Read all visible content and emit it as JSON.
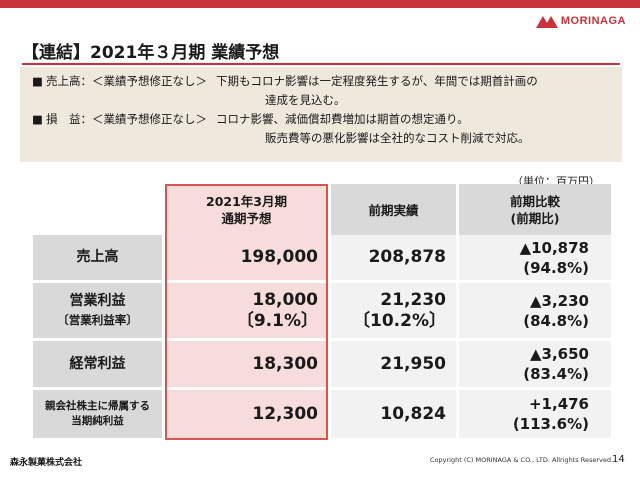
{
  "header": {
    "logo_text": "MORINAGA",
    "title": "【連結】2021年３月期 業績予想"
  },
  "summary": [
    {
      "bullet": "■",
      "label": "売上高：＜業績予想修正なし＞",
      "line1": "下期もコロナ影響は一定程度発生するが、年間では期首計画の",
      "line2": "達成を見込む。"
    },
    {
      "bullet": "■",
      "label": "損　益：＜業績予想修正なし＞",
      "line1": "コロナ影響、減価償却費増加は期首の想定通り。",
      "line2": "販売費等の悪化影響は全社的なコスト削減で対応。"
    }
  ],
  "unit": "（単位：百万円）",
  "table": {
    "columns": [
      {
        "line1": "2021年3月期",
        "line2": "通期予想"
      },
      {
        "line1": "前期実績",
        "line2": ""
      },
      {
        "line1": "前期比較",
        "line2": "(前期比)"
      }
    ],
    "rows": [
      {
        "label": "売上高",
        "label_sub": "",
        "forecast": "198,000",
        "forecast_sub": "",
        "prior": "208,878",
        "prior_sub": "",
        "change": "▲10,878",
        "change_pct": "(94.8%)"
      },
      {
        "label": "営業利益",
        "label_sub": "〔営業利益率〕",
        "forecast": "18,000",
        "forecast_sub": "〔9.1%〕",
        "prior": "21,230",
        "prior_sub": "〔10.2%〕",
        "change": "▲3,230",
        "change_pct": "(84.8%)"
      },
      {
        "label": "経常利益",
        "label_sub": "",
        "forecast": "18,300",
        "forecast_sub": "",
        "prior": "21,950",
        "prior_sub": "",
        "change": "▲3,650",
        "change_pct": "(83.4%)"
      },
      {
        "label": "親会社株主に帰属する",
        "label_sub": "当期純利益",
        "forecast": "12,300",
        "forecast_sub": "",
        "prior": "10,824",
        "prior_sub": "",
        "change": "+1,476",
        "change_pct": "(113.6%)"
      }
    ]
  },
  "footer": {
    "company": "森永製菓株式会社",
    "copyright": "Copyright (C) MORINAGA & CO., LTD. Allrights Reserved.",
    "page": "14"
  },
  "colors": {
    "accent": "#c8323a",
    "highlight": "#f7dcdc",
    "highlight_border": "#d9534f",
    "summary_bg": "#efe8dc"
  }
}
